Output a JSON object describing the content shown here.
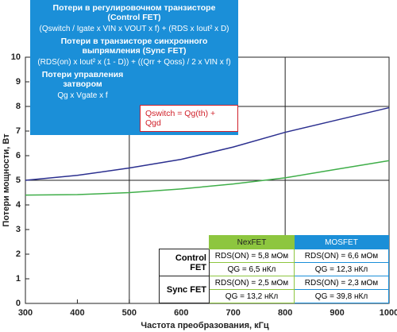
{
  "chart_data": {
    "type": "line",
    "x_label": "Частота преобразования, кГц",
    "y_label": "Потери мощности, Вт",
    "x": [
      300,
      400,
      500,
      600,
      700,
      800,
      900,
      1000
    ],
    "series": [
      {
        "color": "#2b2f8f",
        "values": [
          5.0,
          5.2,
          5.5,
          5.85,
          6.35,
          6.95,
          7.45,
          7.95
        ]
      },
      {
        "color": "#3fae49",
        "values": [
          4.4,
          4.42,
          4.5,
          4.65,
          4.85,
          5.1,
          5.45,
          5.8
        ]
      }
    ],
    "xlim": [
      300,
      1000
    ],
    "xticks": [
      300,
      400,
      500,
      600,
      700,
      800,
      900,
      1000
    ],
    "ylim": [
      0,
      10
    ],
    "yticks": [
      0,
      1,
      2,
      3,
      4,
      5,
      6,
      7,
      8,
      9,
      10
    ],
    "grid_x": [
      500,
      800
    ],
    "grid_y": [
      5,
      8
    ]
  },
  "formula_box": {
    "title1": "Потери в регулировочном транзисторе",
    "subtitle1": "(Control FET)",
    "formula1": "(Qswitch / Igate x VIN x VOUT x f) + (RDS x Iout² x D)",
    "title2": "Потери в транзисторе синхронного выпрямления (Sync FET)",
    "formula2": "(RDS(on) x Iout² x (1 - D)) + ((Qrr + Qoss) / 2 x VIN x f)",
    "title3": "Потери управления затвором",
    "formula3": "Qg x Vgate x f",
    "note": "Qswitch = Qg(th) + Qgd"
  },
  "table": {
    "header": [
      "NexFET",
      "MOSFET"
    ],
    "groups": [
      {
        "label": "Control FET",
        "rows": [
          [
            "RDS(ON) = 5,8 мОм",
            "RDS(ON) = 6,6 мОм"
          ],
          [
            "QG = 6,5 нКл",
            "QG = 12,3 нКл"
          ]
        ]
      },
      {
        "label": "Sync FET",
        "rows": [
          [
            "RDS(ON) = 2,5 мОм",
            "RDS(ON) = 2,3 мОм"
          ],
          [
            "QG = 13,2 нКл",
            "QG = 39,8 нКл"
          ]
        ]
      }
    ]
  }
}
